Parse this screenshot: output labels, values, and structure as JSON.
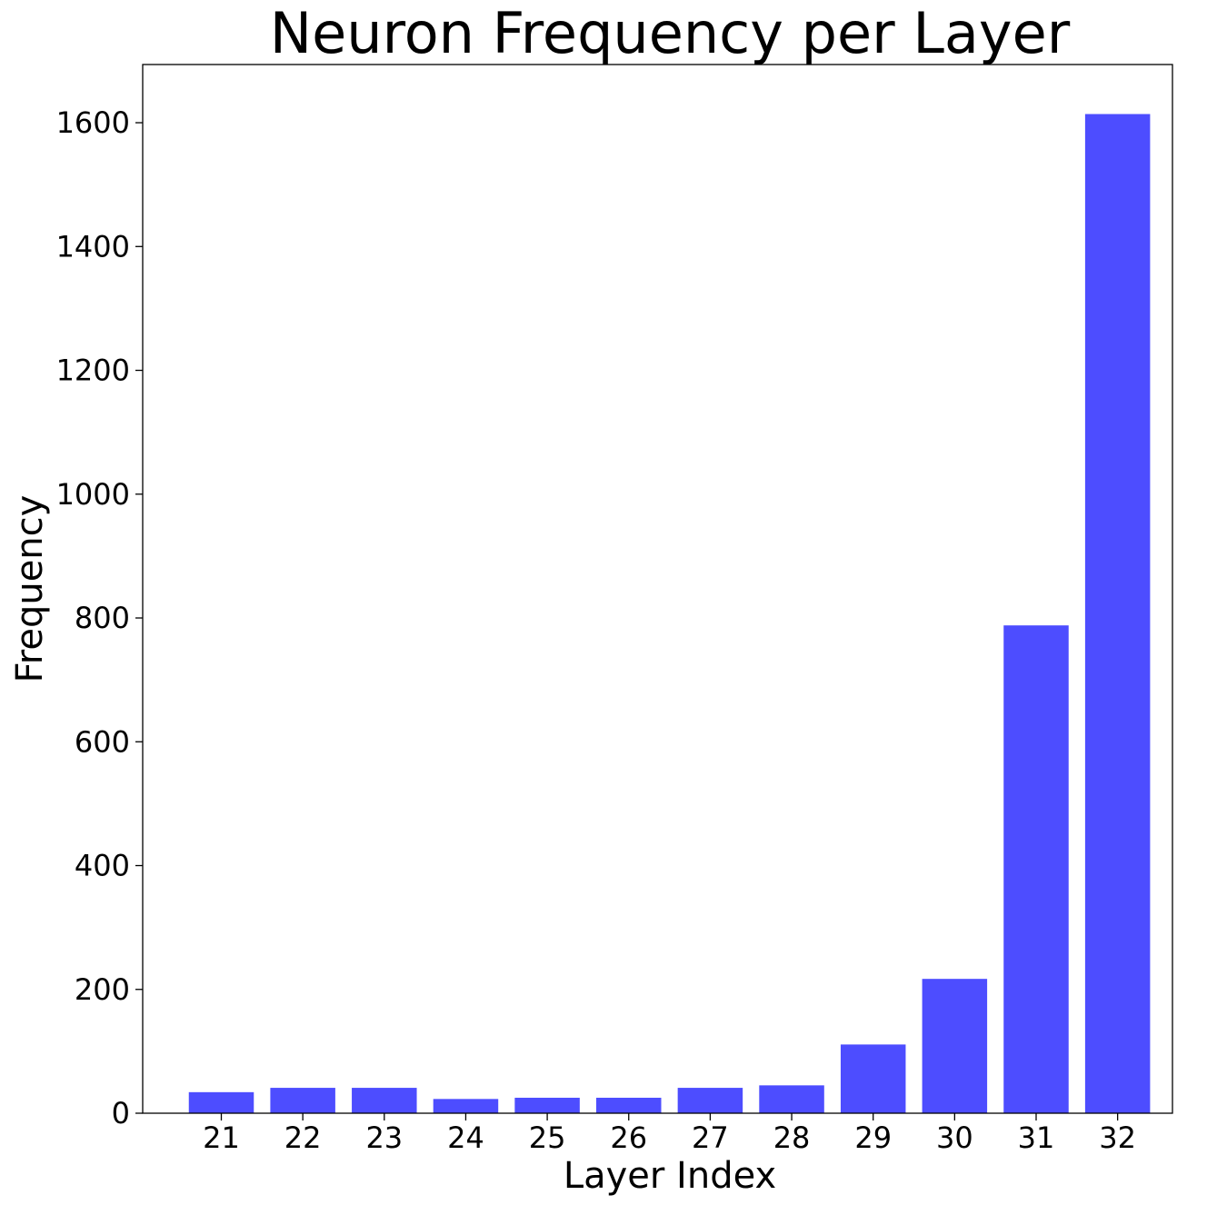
{
  "chart_data": {
    "type": "bar",
    "title": "Neuron Frequency per Layer",
    "xlabel": "Layer Index",
    "ylabel": "Frequency",
    "categories": [
      "21",
      "22",
      "23",
      "24",
      "25",
      "26",
      "27",
      "28",
      "29",
      "30",
      "31",
      "32"
    ],
    "values": [
      34,
      41,
      41,
      23,
      25,
      25,
      41,
      45,
      111,
      217,
      788,
      1614
    ],
    "ylim": [
      0,
      1694
    ],
    "yticks": [
      0,
      200,
      400,
      600,
      800,
      1000,
      1200,
      1400,
      1600
    ],
    "grid": false,
    "legend": "none",
    "bar_color": "#4d4dff"
  }
}
